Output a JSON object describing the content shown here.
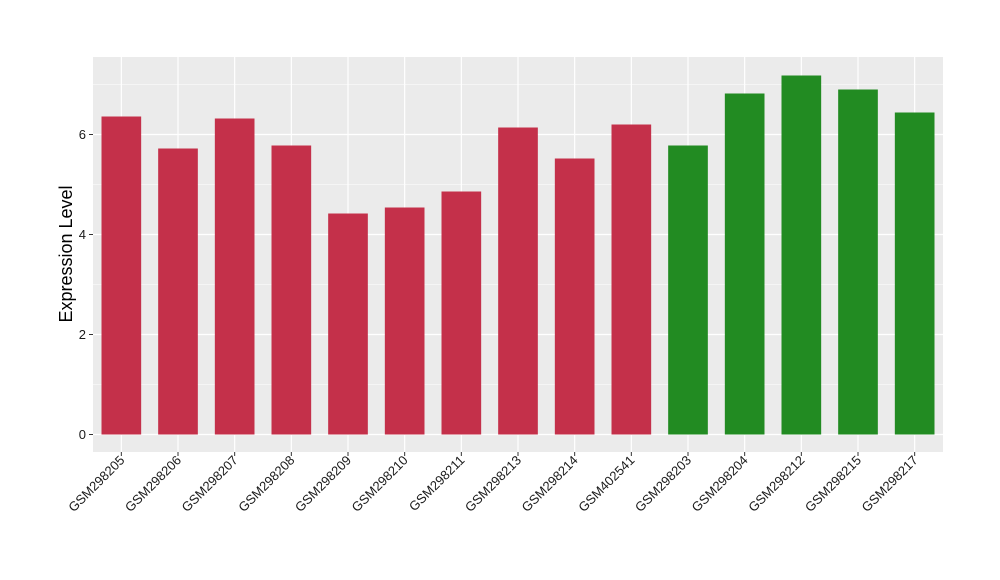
{
  "chart_data": {
    "type": "bar",
    "title": "",
    "xlabel": "",
    "ylabel": "Expression Level",
    "ylim": [
      -0.35,
      7.55
    ],
    "yticks": [
      0,
      2,
      4,
      6
    ],
    "grid": true,
    "legend": "none",
    "categories": [
      "GSM298205",
      "GSM298206",
      "GSM298207",
      "GSM298208",
      "GSM298209",
      "GSM298210",
      "GSM298211",
      "GSM298213",
      "GSM298214",
      "GSM402541",
      "GSM298203",
      "GSM298204",
      "GSM298212",
      "GSM298215",
      "GSM298217"
    ],
    "values": [
      6.36,
      5.72,
      6.32,
      5.78,
      4.42,
      4.54,
      4.86,
      6.14,
      5.52,
      6.2,
      5.78,
      6.82,
      7.18,
      6.9,
      6.44
    ],
    "groups": [
      0,
      0,
      0,
      0,
      0,
      0,
      0,
      0,
      0,
      0,
      1,
      1,
      1,
      1,
      1
    ],
    "group_colors": [
      "#c4304a",
      "#228b22"
    ],
    "panel_background": "#ebebeb",
    "grid_color": "#ffffff"
  }
}
